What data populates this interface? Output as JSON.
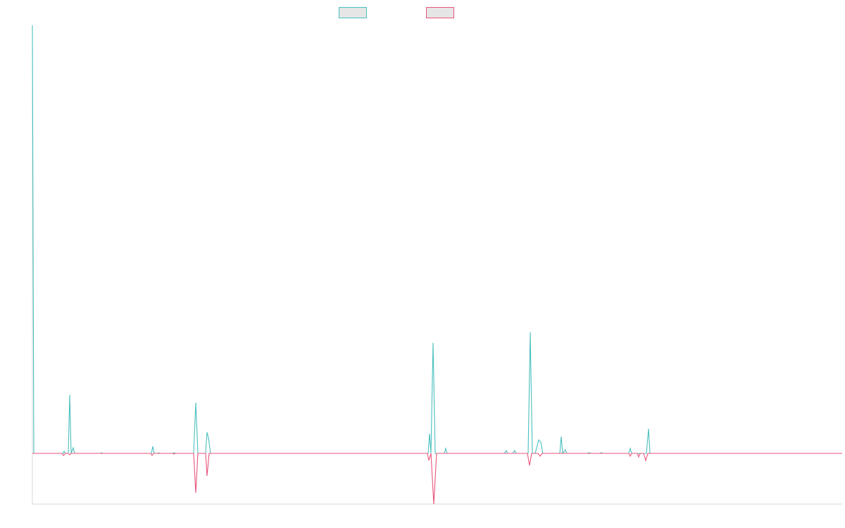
{
  "chart_data": {
    "type": "line",
    "title": "",
    "xlabel": "",
    "ylabel": "",
    "grid": false,
    "legend": "top-center",
    "ylim": [
      -72,
      608
    ],
    "xlim": [
      0,
      1150
    ],
    "series": [
      {
        "name": "",
        "color": "#4bbfbf",
        "fill": "#e6e6e6",
        "points": [
          [
            0,
            608
          ],
          [
            2,
            0
          ],
          [
            44,
            0
          ],
          [
            45,
            3
          ],
          [
            47,
            0
          ],
          [
            51,
            0
          ],
          [
            53,
            83
          ],
          [
            55,
            0
          ],
          [
            58,
            8
          ],
          [
            60,
            0
          ],
          [
            97,
            0
          ],
          [
            98,
            1
          ],
          [
            100,
            0
          ],
          [
            169,
            0
          ],
          [
            171,
            10
          ],
          [
            173,
            0
          ],
          [
            178,
            0
          ],
          [
            179,
            1
          ],
          [
            181,
            0
          ],
          [
            200,
            0
          ],
          [
            201,
            1
          ],
          [
            203,
            0
          ],
          [
            229,
            0
          ],
          [
            232,
            72
          ],
          [
            235,
            0
          ],
          [
            246,
            0
          ],
          [
            248,
            30
          ],
          [
            250,
            22
          ],
          [
            253,
            0
          ],
          [
            562,
            0
          ],
          [
            564,
            28
          ],
          [
            566,
            0
          ],
          [
            569,
            157
          ],
          [
            572,
            0
          ],
          [
            585,
            0
          ],
          [
            587,
            7
          ],
          [
            589,
            0
          ],
          [
            670,
            0
          ],
          [
            673,
            4
          ],
          [
            675,
            0
          ],
          [
            682,
            0
          ],
          [
            685,
            4
          ],
          [
            687,
            0
          ],
          [
            704,
            0
          ],
          [
            707,
            172
          ],
          [
            710,
            0
          ],
          [
            714,
            0
          ],
          [
            719,
            19
          ],
          [
            722,
            16
          ],
          [
            725,
            0
          ],
          [
            749,
            0
          ],
          [
            751,
            24
          ],
          [
            753,
            0
          ],
          [
            757,
            5
          ],
          [
            759,
            0
          ],
          [
            788,
            0
          ],
          [
            791,
            1
          ],
          [
            793,
            0
          ],
          [
            806,
            0
          ],
          [
            808,
            1
          ],
          [
            810,
            0
          ],
          [
            847,
            0
          ],
          [
            849,
            7
          ],
          [
            851,
            0
          ],
          [
            872,
            0
          ],
          [
            875,
            35
          ],
          [
            877,
            0
          ],
          [
            1150,
            0
          ]
        ]
      },
      {
        "name": "",
        "color": "#e8547a",
        "fill": "#e6e6e6",
        "points": [
          [
            0,
            0
          ],
          [
            42,
            0
          ],
          [
            44,
            -3
          ],
          [
            47,
            0
          ],
          [
            51,
            0
          ],
          [
            53,
            -2
          ],
          [
            55,
            0
          ],
          [
            168,
            0
          ],
          [
            170,
            -3
          ],
          [
            172,
            0
          ],
          [
            199,
            0
          ],
          [
            201,
            -1
          ],
          [
            203,
            0
          ],
          [
            229,
            0
          ],
          [
            232,
            -56
          ],
          [
            235,
            0
          ],
          [
            246,
            0
          ],
          [
            248,
            -32
          ],
          [
            251,
            0
          ],
          [
            561,
            0
          ],
          [
            563,
            -10
          ],
          [
            566,
            0
          ],
          [
            570,
            -72
          ],
          [
            574,
            0
          ],
          [
            703,
            0
          ],
          [
            706,
            -17
          ],
          [
            709,
            0
          ],
          [
            718,
            0
          ],
          [
            721,
            -4
          ],
          [
            724,
            0
          ],
          [
            847,
            0
          ],
          [
            849,
            -4
          ],
          [
            851,
            0
          ],
          [
            859,
            0
          ],
          [
            861,
            -5
          ],
          [
            863,
            0
          ],
          [
            868,
            0
          ],
          [
            871,
            -10
          ],
          [
            874,
            0
          ],
          [
            1150,
            0
          ]
        ]
      }
    ]
  }
}
